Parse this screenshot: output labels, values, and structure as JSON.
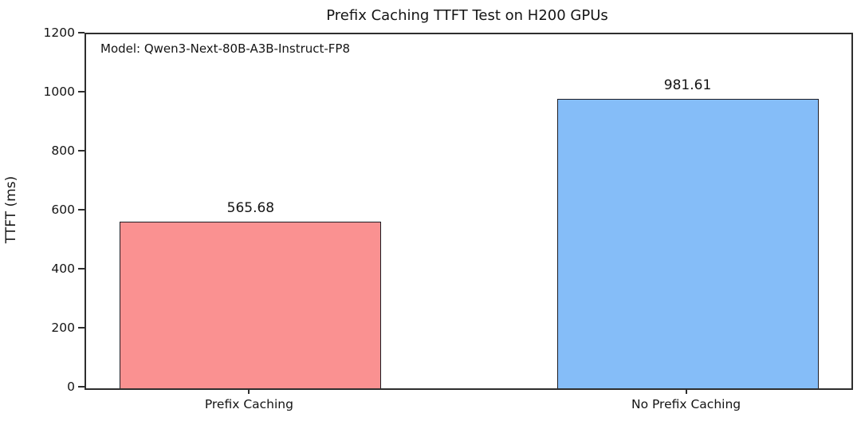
{
  "chart_data": {
    "type": "bar",
    "title": "Prefix Caching TTFT Test on H200 GPUs",
    "annotation": "Model: Qwen3-Next-80B-A3B-Instruct-FP8",
    "categories": [
      "Prefix Caching",
      "No Prefix Caching"
    ],
    "values": [
      565.68,
      981.61
    ],
    "value_labels": [
      "565.68",
      "981.61"
    ],
    "bar_colors": [
      "#fa9191",
      "#85bdf8"
    ],
    "bar_edge_color": "#1d1d24",
    "xlabel": "",
    "ylabel": "TTFT (ms)",
    "ylim": [
      0,
      1200
    ],
    "yticks": [
      0,
      200,
      400,
      600,
      800,
      1000,
      1200
    ],
    "grid": false,
    "legend_position": "none"
  }
}
